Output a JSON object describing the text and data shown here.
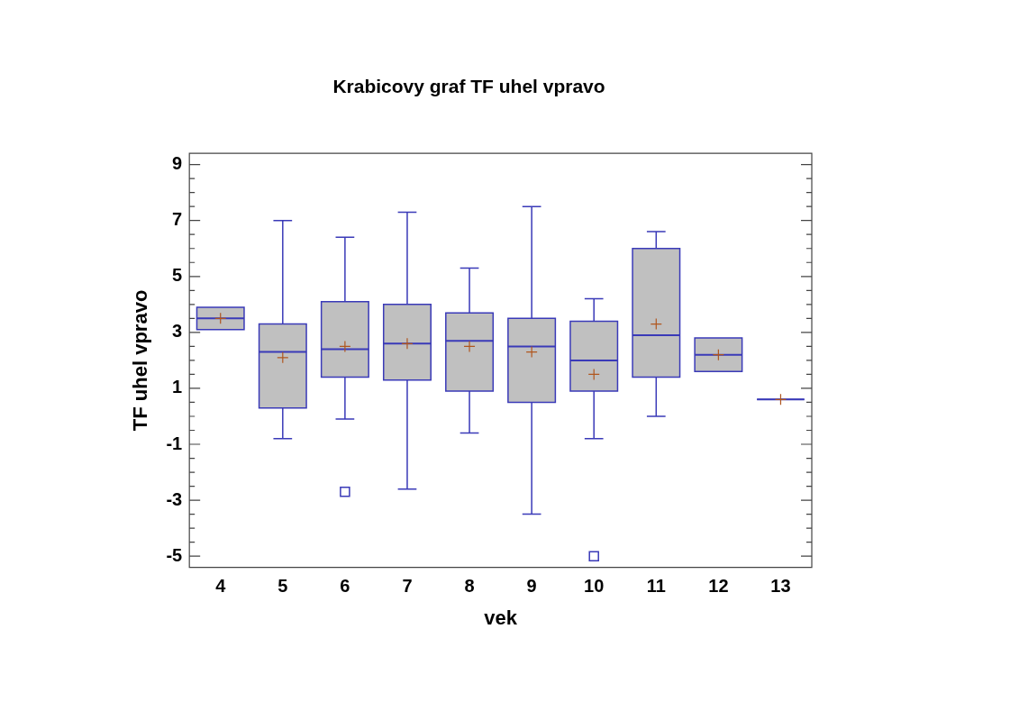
{
  "chart_data": {
    "type": "box",
    "title": "Krabicovy graf TF uhel vpravo",
    "xlabel": "vek",
    "ylabel": "TF uhel vpravo",
    "categories": [
      "4",
      "5",
      "6",
      "7",
      "8",
      "9",
      "10",
      "11",
      "12",
      "13"
    ],
    "ylim": [
      -5.4,
      9.4
    ],
    "yticks": [
      -5,
      {
        "value": -4.5,
        "label": null
      },
      {
        "value": -4,
        "label": null
      },
      {
        "value": -3.5,
        "label": null
      },
      -3,
      {
        "value": -2.5,
        "label": null
      },
      {
        "value": -2,
        "label": null
      },
      {
        "value": -1.5,
        "label": null
      },
      -1,
      {
        "value": -0.5,
        "label": null
      },
      {
        "value": 0,
        "label": null
      },
      {
        "value": 0.5,
        "label": null
      },
      1,
      {
        "value": 1.5,
        "label": null
      },
      {
        "value": 2,
        "label": null
      },
      {
        "value": 2.5,
        "label": null
      },
      3,
      {
        "value": 3.5,
        "label": null
      },
      {
        "value": 4,
        "label": null
      },
      {
        "value": 4.5,
        "label": null
      },
      5,
      {
        "value": 5.5,
        "label": null
      },
      {
        "value": 6,
        "label": null
      },
      {
        "value": 6.5,
        "label": null
      },
      7,
      {
        "value": 7.5,
        "label": null
      },
      {
        "value": 8,
        "label": null
      },
      {
        "value": 8.5,
        "label": null
      },
      9
    ],
    "grid": false,
    "legend": false,
    "series": [
      {
        "color": "#3a3ab8",
        "boxes": [
          {
            "low": 3.1,
            "q1": 3.1,
            "median": 3.5,
            "q3": 3.9,
            "high": 3.9,
            "mean": 3.5
          },
          {
            "low": -0.8,
            "q1": 0.3,
            "median": 2.3,
            "q3": 3.3,
            "high": 7.0,
            "mean": 2.1
          },
          {
            "low": -0.1,
            "q1": 1.4,
            "median": 2.4,
            "q3": 4.1,
            "high": 6.4,
            "mean": 2.5,
            "outliers": [
              -2.7
            ]
          },
          {
            "low": -2.6,
            "q1": 1.3,
            "median": 2.6,
            "q3": 4.0,
            "high": 7.3,
            "mean": 2.6
          },
          {
            "low": -0.6,
            "q1": 0.9,
            "median": 2.7,
            "q3": 3.7,
            "high": 5.3,
            "mean": 2.5
          },
          {
            "low": -3.5,
            "q1": 0.5,
            "median": 2.5,
            "q3": 3.5,
            "high": 7.5,
            "mean": 2.3
          },
          {
            "low": -0.8,
            "q1": 0.9,
            "median": 2.0,
            "q3": 3.4,
            "high": 4.2,
            "mean": 1.5,
            "outliers": [
              -5.0
            ]
          },
          {
            "low": 0.0,
            "q1": 1.4,
            "median": 2.9,
            "q3": 6.0,
            "high": 6.6,
            "mean": 3.3
          },
          {
            "low": 1.6,
            "q1": 1.6,
            "median": 2.2,
            "q3": 2.8,
            "high": 2.8,
            "mean": 2.2
          },
          {
            "low": 0.6,
            "q1": 0.6,
            "median": 0.6,
            "q3": 0.6,
            "high": 0.6,
            "mean": 0.6
          }
        ]
      }
    ]
  }
}
